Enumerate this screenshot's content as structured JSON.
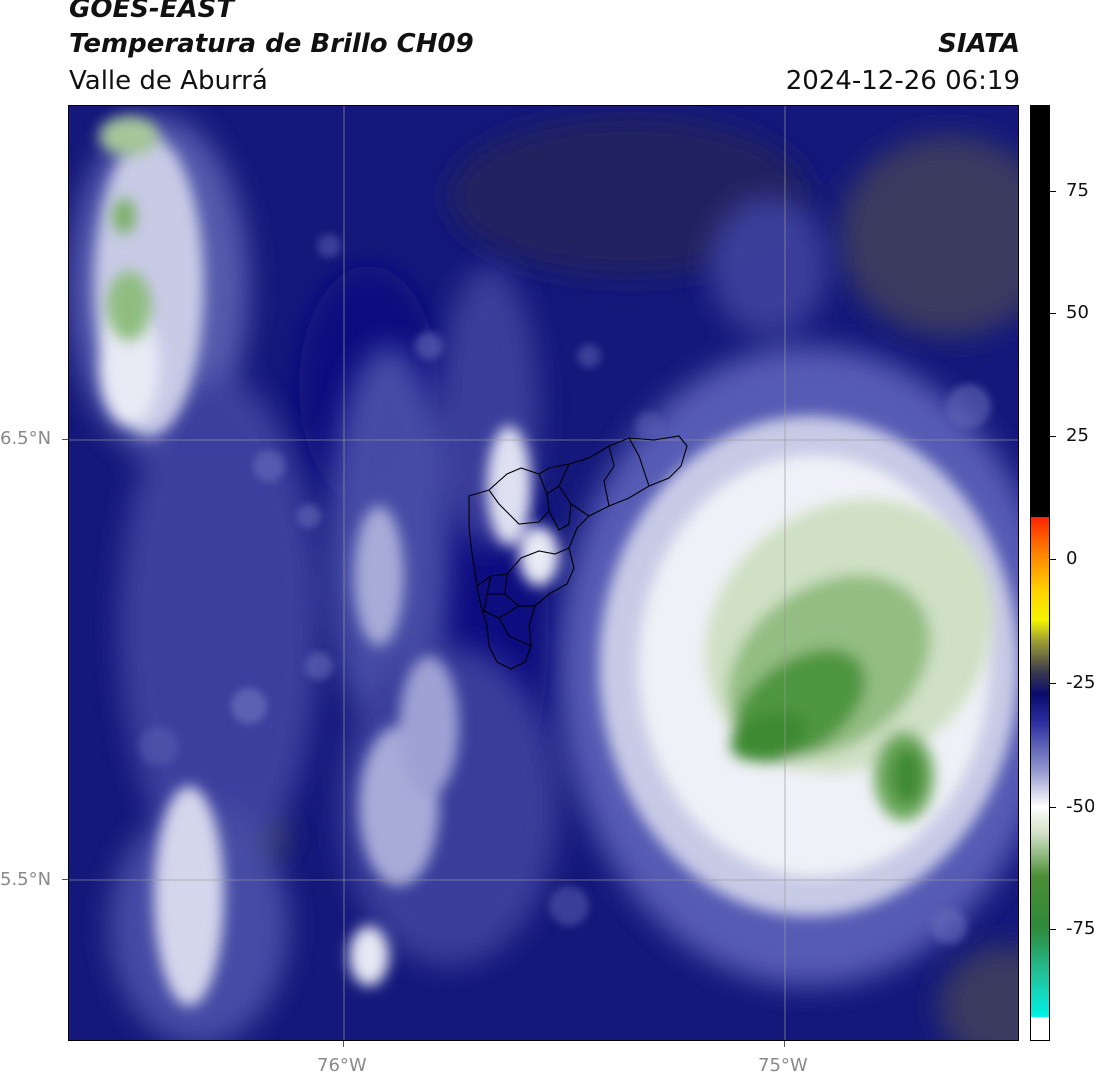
{
  "header": {
    "title_line1": "GOES-EAST",
    "title_line2": "Temperatura de Brillo CH09",
    "region": "Valle de Aburrá",
    "organization": "SIATA",
    "timestamp": "2024-12-26 06:19"
  },
  "map": {
    "lat_labels": [
      "6.5°N",
      "5.5°N"
    ],
    "lon_labels": [
      "76°W",
      "75°W"
    ],
    "graticule_color": "#9a9a9a",
    "boundary_color": "#000000"
  },
  "colorbar": {
    "tick_labels": [
      "75",
      "50",
      "25",
      "0",
      "-25",
      "-50",
      "-75"
    ],
    "colors": {
      "warm_cap": "#000000",
      "red": "#ff2200",
      "orange": "#ff7a00",
      "yellow": "#ffd400",
      "navy": "#0a0a6e",
      "white": "#ffffff",
      "green": "#2e8a3a",
      "cyan": "#00f2e6"
    }
  }
}
